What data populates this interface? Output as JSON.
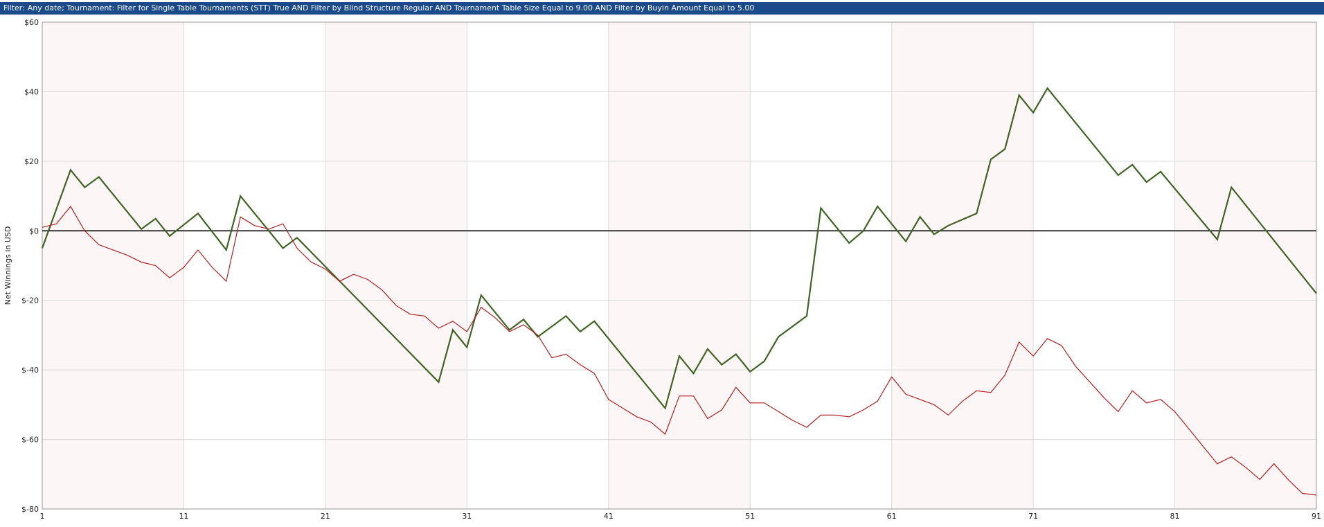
{
  "filter_bar": {
    "prefix": "Filter:",
    "text": "Any date; Tournament: Filter for Single Table Tournaments (STT) True AND Filter by Blind Structure  Regular AND Tournament Table Size Equal to 9.00 AND Filter by Buyin Amount Equal to 5.00"
  },
  "chart_data": {
    "type": "line",
    "xlabel": "",
    "ylabel": "Net Winnings in USD",
    "xlim": [
      1,
      91
    ],
    "ylim": [
      -80,
      60
    ],
    "x_ticks": [
      1,
      11,
      21,
      31,
      41,
      51,
      61,
      71,
      81,
      91
    ],
    "y_ticks": [
      60,
      40,
      20,
      0,
      -20,
      -40,
      -60,
      -80
    ],
    "y_tick_labels": [
      "$60",
      "$40",
      "$20",
      "$0",
      "$-20",
      "$-40",
      "$-60",
      "$-80"
    ],
    "grid": true,
    "band_colors": [
      "#fcf6f6",
      "#ffffff"
    ],
    "zero_line": true,
    "series": [
      {
        "color": "#3f6322",
        "width": 2.2,
        "x": [
          1,
          3,
          4,
          5,
          8,
          9,
          10,
          12,
          14,
          15,
          18,
          19,
          29,
          30,
          31,
          32,
          34,
          35,
          36,
          38,
          39,
          40,
          45,
          46,
          47,
          48,
          49,
          50,
          51,
          52,
          53,
          55,
          56,
          58,
          59,
          60,
          62,
          63,
          64,
          65,
          67,
          68,
          69,
          70,
          71,
          72,
          77,
          78,
          79,
          80,
          84,
          85,
          91
        ],
        "y": [
          -5,
          17.5,
          12.5,
          15.5,
          0.5,
          3.5,
          -1.5,
          5,
          -5.5,
          10,
          -5,
          -2,
          -43.5,
          -28.5,
          -33.5,
          -18.5,
          -28.5,
          -25.5,
          -30.5,
          -24.5,
          -29,
          -26,
          -51,
          -36,
          -41,
          -34,
          -38.5,
          -35.5,
          -40.5,
          -37.5,
          -30.5,
          -24.5,
          6.5,
          -3.5,
          0,
          7,
          -3,
          4,
          -1,
          1.5,
          5,
          20.5,
          23.5,
          39,
          34,
          41,
          16,
          19,
          14,
          17,
          -2.5,
          12.5,
          -18
        ]
      },
      {
        "color": "#b02020",
        "width": 1.2,
        "x": [
          1,
          2,
          3,
          4,
          5,
          6,
          7,
          8,
          9,
          10,
          11,
          12,
          13,
          14,
          15,
          16,
          17,
          18,
          19,
          20,
          21,
          22,
          23,
          24,
          25,
          26,
          27,
          28,
          29,
          30,
          31,
          32,
          33,
          34,
          35,
          36,
          37,
          38,
          39,
          40,
          41,
          42,
          43,
          44,
          45,
          46,
          47,
          48,
          49,
          50,
          51,
          52,
          53,
          54,
          55,
          56,
          57,
          58,
          59,
          60,
          61,
          62,
          63,
          64,
          65,
          66,
          67,
          68,
          69,
          70,
          71,
          72,
          73,
          74,
          75,
          76,
          77,
          78,
          79,
          80,
          81,
          82,
          83,
          84,
          85,
          86,
          87,
          88,
          89,
          90,
          91
        ],
        "y": [
          1,
          2,
          7,
          0,
          -4,
          -5.5,
          -7,
          -9,
          -10,
          -13.5,
          -10.5,
          -5.5,
          -10.5,
          -14.5,
          4,
          1.5,
          0.5,
          2,
          -5,
          -9,
          -11,
          -14.5,
          -12.5,
          -14,
          -17,
          -21.5,
          -24,
          -24.5,
          -28,
          -26,
          -29,
          -22,
          -25,
          -29,
          -27,
          -30,
          -36.5,
          -35.5,
          -38.5,
          -41,
          -48.5,
          -51,
          -53.5,
          -55,
          -58.5,
          -47.5,
          -47.5,
          -54,
          -51.5,
          -45,
          -49.5,
          -49.5,
          -52,
          -54.5,
          -56.5,
          -53,
          -53,
          -53.5,
          -51.5,
          -49,
          -42,
          -47,
          -48.5,
          -50,
          -53,
          -49,
          -46,
          -46.5,
          -41.5,
          -32,
          -36,
          -31,
          -33,
          -39,
          -43.5,
          -48,
          -52,
          -46,
          -49.5,
          -48.5,
          -52,
          -57,
          -62,
          -67,
          -65,
          -68,
          -71.5,
          -67,
          -71.5,
          -75.5,
          -76
        ]
      }
    ]
  }
}
